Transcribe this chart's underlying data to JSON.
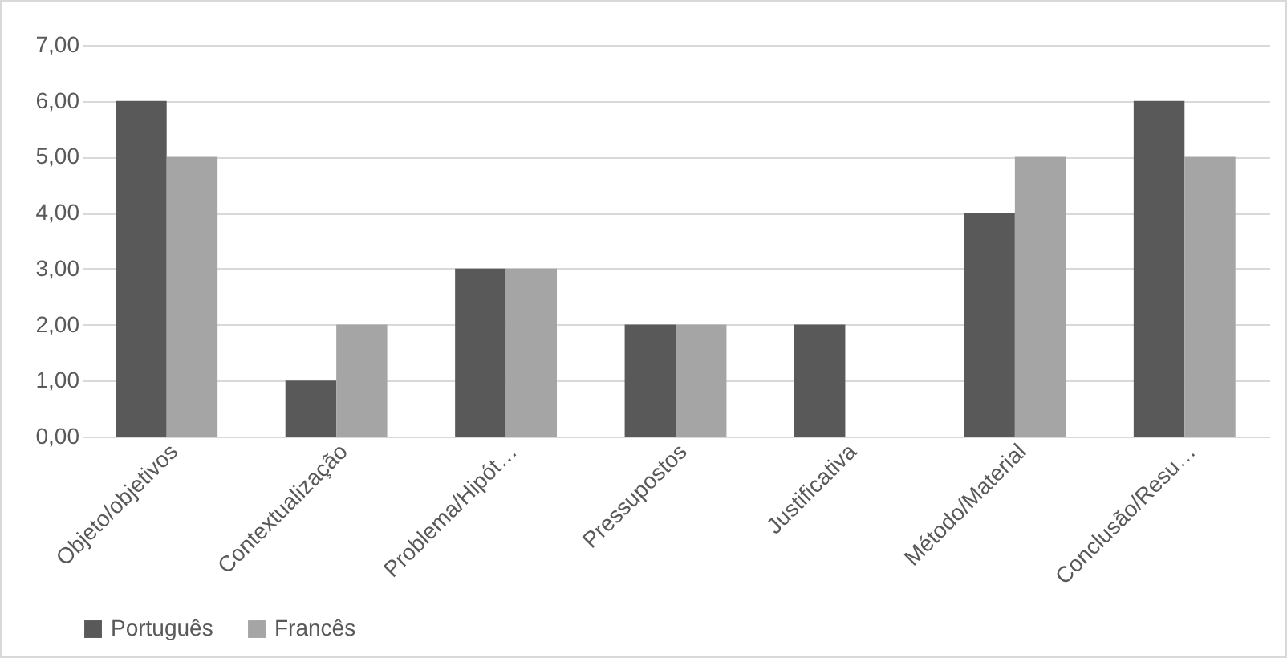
{
  "chart_data": {
    "type": "bar",
    "categories": [
      "Objeto/objetivos",
      "Contextualização",
      "Problema/Hipót…",
      "Pressupostos",
      "Justificativa",
      "Método/Material",
      "Conclusão/Resu…"
    ],
    "series": [
      {
        "name": "Português",
        "color": "#595959",
        "values": [
          6,
          1,
          3,
          2,
          2,
          4,
          6
        ]
      },
      {
        "name": "Francês",
        "color": "#a5a5a5",
        "values": [
          5,
          2,
          3,
          2,
          null,
          5,
          5
        ]
      }
    ],
    "ylim": [
      0,
      7
    ],
    "yticks": [
      {
        "value": 0,
        "label": "0,00"
      },
      {
        "value": 1,
        "label": "1,00"
      },
      {
        "value": 2,
        "label": "2,00"
      },
      {
        "value": 3,
        "label": "3,00"
      },
      {
        "value": 4,
        "label": "4,00"
      },
      {
        "value": 5,
        "label": "5,00"
      },
      {
        "value": 6,
        "label": "6,00"
      },
      {
        "value": 7,
        "label": "7,00"
      }
    ],
    "grid": "y",
    "legend": "bottom"
  }
}
